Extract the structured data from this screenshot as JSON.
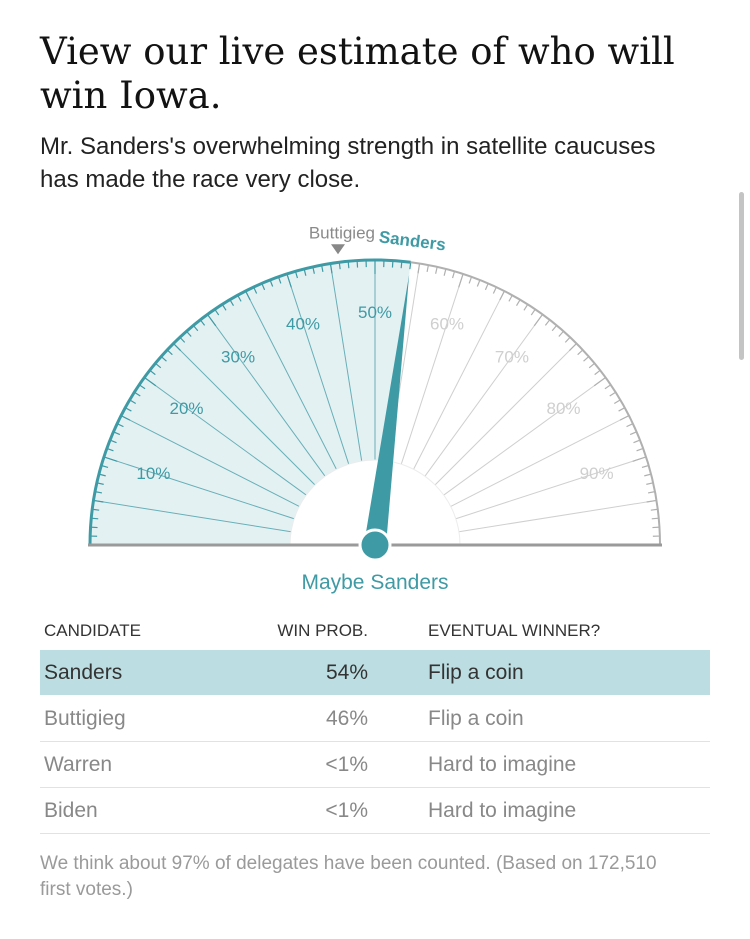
{
  "headline": "View our live estimate of who will win Iowa.",
  "dek": "Mr. Sanders's overwhelming strength in satellite caucuses has made the race very close.",
  "chart_data": {
    "type": "gauge",
    "ticks": [
      "10%",
      "20%",
      "30%",
      "40%",
      "50%",
      "60%",
      "70%",
      "80%",
      "90%"
    ],
    "tick_values": [
      10,
      20,
      30,
      40,
      50,
      60,
      70,
      80,
      90
    ],
    "range": [
      0,
      100
    ],
    "needle_value": 54,
    "needle_label": "Sanders",
    "marker_value": 46,
    "marker_label": "Buttigieg",
    "center_label": "Maybe Sanders",
    "colors": {
      "accent": "#3e9aa4",
      "fill": "#e4f1f3",
      "grey": "#b0b0b0",
      "light_grey": "#cfcfcf",
      "leader_row": "#bcdde1"
    }
  },
  "table": {
    "headers": {
      "candidate": "CANDIDATE",
      "win_prob": "WIN PROB.",
      "eventual_winner": "EVENTUAL WINNER?"
    },
    "rows": [
      {
        "candidate": "Sanders",
        "win_prob": "54%",
        "eventual_winner": "Flip a coin"
      },
      {
        "candidate": "Buttigieg",
        "win_prob": "46%",
        "eventual_winner": "Flip a coin"
      },
      {
        "candidate": "Warren",
        "win_prob": "<1%",
        "eventual_winner": "Hard to imagine"
      },
      {
        "candidate": "Biden",
        "win_prob": "<1%",
        "eventual_winner": "Hard to imagine"
      }
    ]
  },
  "footnote": "We think about 97% of delegates have been counted. (Based on 172,510 first votes.)"
}
